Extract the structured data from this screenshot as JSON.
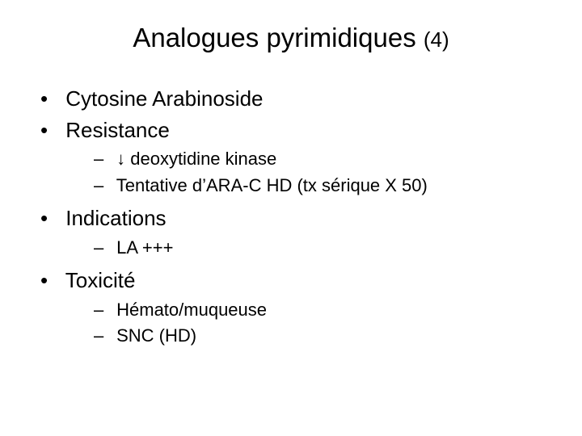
{
  "background_color": "#ffffff",
  "text_color": "#000000",
  "font_family": "Arial",
  "title": {
    "main": "Analogues pyrimidiques",
    "suffix": "(4)",
    "fontsize_main": 33,
    "fontsize_suffix": 26
  },
  "bullets": [
    {
      "text": "Cytosine Arabinoside",
      "children": []
    },
    {
      "text": "Resistance",
      "children": [
        {
          "text": "↓ deoxytidine kinase"
        },
        {
          "text": "Tentative d’ARA-C HD (tx sérique X 50)"
        }
      ]
    },
    {
      "text": "Indications",
      "children": [
        {
          "text": "LA +++"
        }
      ]
    },
    {
      "text": "Toxicité",
      "children": [
        {
          "text": "Hémato/muqueuse"
        },
        {
          "text": "SNC (HD)"
        }
      ]
    }
  ],
  "level1_fontsize": 26,
  "level2_fontsize": 22
}
